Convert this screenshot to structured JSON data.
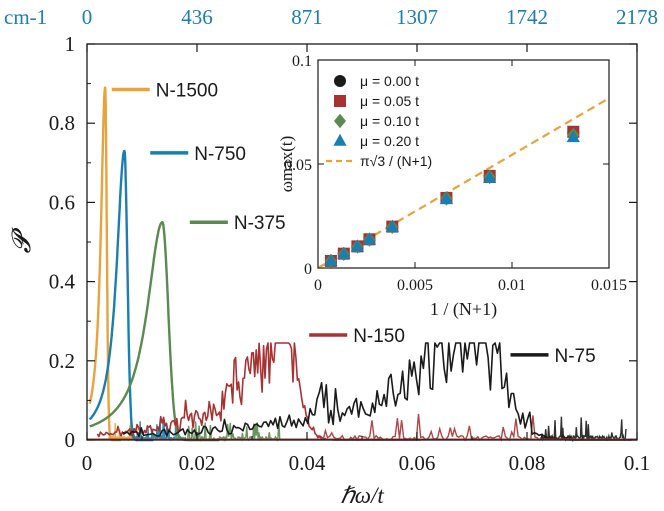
{
  "chart_data": [
    {
      "type": "line",
      "xlabel": "ℏω/t",
      "ylabel": "𝓟",
      "xlim": [
        0,
        0.1
      ],
      "ylim": [
        0,
        1
      ],
      "x_ticks": [
        0,
        0.02,
        0.04,
        0.06,
        0.08,
        0.1
      ],
      "x_tick_labels": [
        "0",
        "0.02",
        "0.04",
        "0.06",
        "0.08",
        "0.1"
      ],
      "y_ticks": [
        0,
        0.2,
        0.4,
        0.6,
        0.8,
        1
      ],
      "y_tick_labels": [
        "0",
        "0.2",
        "0.4",
        "0.6",
        "0.8",
        "1"
      ],
      "top_axis": {
        "unit_label": "cm-1",
        "ticks": [
          0,
          0.02,
          0.04,
          0.06,
          0.08,
          0.1
        ],
        "tick_labels": [
          "0",
          "436",
          "871",
          "1307",
          "1742",
          "2178"
        ],
        "color": "#1a7fb0"
      },
      "series": [
        {
          "name": "N-1500",
          "color": "#e8a33c",
          "peak_x": 0.0033,
          "peak_y": 0.89,
          "width": 0.0012,
          "label_x": 0.0125,
          "label_y": 0.885
        },
        {
          "name": "N-750",
          "color": "#1a7fb0",
          "peak_x": 0.0068,
          "peak_y": 0.73,
          "width": 0.0022,
          "label_x": 0.0195,
          "label_y": 0.725
        },
        {
          "name": "N-375",
          "color": "#5a8a4e",
          "peak_x": 0.0137,
          "peak_y": 0.55,
          "width": 0.0043,
          "label_x": 0.0267,
          "label_y": 0.55
        },
        {
          "name": "N-150",
          "color": "#a83232",
          "peak_x": 0.0355,
          "peak_y": 0.245,
          "width": 0.0105,
          "label_x": 0.0484,
          "label_y": 0.265
        },
        {
          "name": "N-75",
          "color": "#1a1a1a",
          "peak_x": 0.0705,
          "peak_y": 0.245,
          "width": 0.02,
          "label_x": 0.085,
          "label_y": 0.215
        }
      ]
    },
    {
      "type": "scatter",
      "xlabel": "1 / (N+1)",
      "ylabel": "ωmax(t)",
      "xlim": [
        0,
        0.015
      ],
      "ylim": [
        0,
        0.1
      ],
      "x_ticks": [
        0,
        0.005,
        0.01,
        0.015
      ],
      "x_tick_labels": [
        "0",
        "0.005",
        "0.01",
        "0.015"
      ],
      "y_ticks": [
        0,
        0.05,
        0.1
      ],
      "y_tick_labels": [
        "0",
        "0.05",
        "0.1"
      ],
      "x": [
        0.000666,
        0.00133,
        0.00203,
        0.00265,
        0.00383,
        0.00662,
        0.00885,
        0.01316
      ],
      "series": [
        {
          "name": "μ = 0.00 t",
          "marker": "circle",
          "color": "#1a1a1a",
          "values": [
            0.0034,
            0.0068,
            0.0103,
            0.0137,
            0.0198,
            0.0335,
            0.044,
            0.065
          ]
        },
        {
          "name": "μ = 0.05 t",
          "marker": "square",
          "color": "#a83232",
          "values": [
            0.0034,
            0.0069,
            0.0104,
            0.0138,
            0.0199,
            0.0337,
            0.0443,
            0.0655
          ]
        },
        {
          "name": "μ = 0.10 t",
          "marker": "diamond",
          "color": "#5a8a4e",
          "values": [
            0.0034,
            0.0068,
            0.0103,
            0.0137,
            0.0198,
            0.0335,
            0.0438,
            0.064
          ]
        },
        {
          "name": "μ = 0.20 t",
          "marker": "triangle",
          "color": "#1a7fb0",
          "values": [
            0.0033,
            0.0067,
            0.0102,
            0.0136,
            0.0196,
            0.033,
            0.0432,
            0.0628
          ]
        }
      ],
      "fit": {
        "name": "π√3 / (N+1)",
        "color": "#e8a33c",
        "slope": 5.441,
        "x_range": [
          0,
          0.015
        ]
      }
    }
  ]
}
